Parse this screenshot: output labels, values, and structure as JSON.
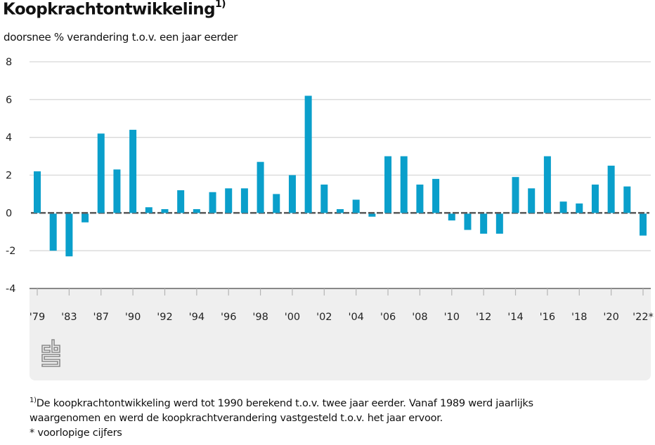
{
  "header": {
    "title": "Koopkrachtontwikkeling",
    "title_superscript": "1)",
    "subtitle": "doorsnee % verandering t.o.v. een jaar eerder"
  },
  "colors": {
    "bar": "#0a9fcb",
    "zero_line": "#5f5f5f",
    "grid": "#d8d8d8",
    "panel": "#efefef",
    "axis": "#888888"
  },
  "logo": {
    "icon": "cbs-logo-icon"
  },
  "chart_data": {
    "type": "bar",
    "title": "Koopkrachtontwikkeling",
    "subtitle": "doorsnee % verandering t.o.v. een jaar eerder",
    "xlabel": "",
    "ylabel": "doorsnee % verandering t.o.v. een jaar eerder",
    "ylim": [
      -4,
      8
    ],
    "yticks": [
      8,
      6,
      4,
      2,
      0,
      -2,
      -4
    ],
    "ytick_labels": [
      "8",
      "6",
      "4",
      "2",
      "0",
      "-2",
      "-4"
    ],
    "grid": true,
    "legend": "none",
    "categories": [
      "1979",
      "1981",
      "1983",
      "1985",
      "1987",
      "1989",
      "1990",
      "1991",
      "1992",
      "1993",
      "1994",
      "1995",
      "1996",
      "1997",
      "1998",
      "1999",
      "2000",
      "2001",
      "2002",
      "2003",
      "2004",
      "2005",
      "2006",
      "2007",
      "2008",
      "2009",
      "2010",
      "2011",
      "2012",
      "2013",
      "2014",
      "2015",
      "2016",
      "2017",
      "2018",
      "2019",
      "2020",
      "2021",
      "2022*"
    ],
    "values": [
      2.2,
      -2.0,
      -2.3,
      -0.5,
      4.2,
      2.3,
      4.4,
      0.3,
      0.2,
      1.2,
      0.2,
      1.1,
      1.3,
      1.3,
      2.7,
      1.0,
      2.0,
      6.2,
      1.5,
      0.2,
      0.7,
      -0.2,
      3.0,
      3.0,
      1.5,
      1.8,
      -0.4,
      -0.9,
      -1.1,
      -1.1,
      1.9,
      1.3,
      3.0,
      0.6,
      0.5,
      1.5,
      2.5,
      1.4,
      -1.2
    ],
    "xtick_labels": [
      "'79",
      "'83",
      "'87",
      "'90",
      "'92",
      "'94",
      "'96",
      "'98",
      "'00",
      "'02",
      "'04",
      "'06",
      "'08",
      "'10",
      "'12",
      "'14",
      "'16",
      "'18",
      "'20",
      "'22*"
    ],
    "xtick_categories": [
      "1979",
      "1983",
      "1987",
      "1990",
      "1992",
      "1994",
      "1996",
      "1998",
      "2000",
      "2002",
      "2004",
      "2006",
      "2008",
      "2010",
      "2012",
      "2014",
      "2016",
      "2018",
      "2020",
      "2022*"
    ]
  },
  "footnotes": {
    "marker": "1)",
    "line1": "De koopkrachtontwikkeling werd tot 1990 berekend t.o.v. twee jaar eerder. Vanaf 1989 werd jaarlijks",
    "line2": "waargenomen en werd de koopkrachtverandering vastgesteld t.o.v. het jaar ervoor.",
    "line3": "* voorlopige cijfers"
  }
}
